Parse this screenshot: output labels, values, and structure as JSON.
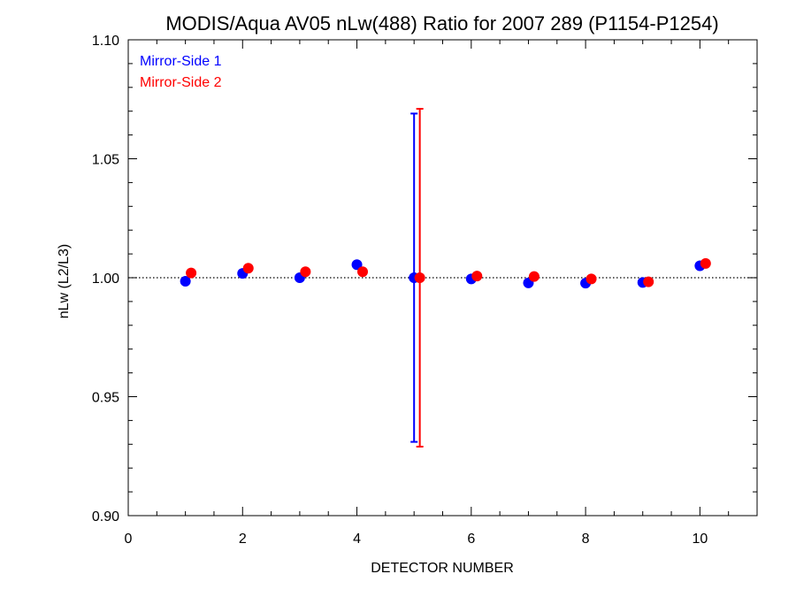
{
  "chart_data": {
    "type": "scatter",
    "title": "MODIS/Aqua AV05 nLw(488) Ratio for 2007 289 (P1154-P1254)",
    "xlabel": "DETECTOR NUMBER",
    "ylabel": "nLw (L2/L3)",
    "xlim": [
      0,
      11
    ],
    "ylim": [
      0.9,
      1.1
    ],
    "xticks": [
      0,
      2,
      4,
      6,
      8,
      10
    ],
    "xtick_labels": [
      "0",
      "2",
      "4",
      "6",
      "8",
      "10"
    ],
    "yticks": [
      0.9,
      0.95,
      1.0,
      1.05,
      1.1
    ],
    "ytick_labels": [
      "0.90",
      "0.95",
      "1.00",
      "1.05",
      "1.10"
    ],
    "reference_line": {
      "y": 1.0,
      "style": "dotted"
    },
    "legend_position": "top-left",
    "grid": false,
    "series": [
      {
        "name": "Mirror-Side 1",
        "color": "#0000ff",
        "x": [
          1,
          2,
          3,
          4,
          5,
          6,
          7,
          8,
          9,
          10
        ],
        "y": [
          0.9985,
          1.0018,
          1.0,
          1.0055,
          1.0,
          0.9995,
          0.9978,
          0.9977,
          0.998,
          1.005
        ],
        "error_bars": [
          {
            "x": 5,
            "low": 0.931,
            "high": 1.069
          }
        ]
      },
      {
        "name": "Mirror-Side 2",
        "color": "#ff0000",
        "x": [
          1.1,
          2.1,
          3.1,
          4.1,
          5.1,
          6.1,
          7.1,
          8.1,
          9.1,
          10.1
        ],
        "y": [
          1.002,
          1.004,
          1.0025,
          1.0025,
          1.0,
          1.0007,
          1.0005,
          0.9995,
          0.9983,
          1.006
        ],
        "error_bars": [
          {
            "x": 5.1,
            "low": 0.929,
            "high": 1.071
          }
        ]
      }
    ]
  }
}
